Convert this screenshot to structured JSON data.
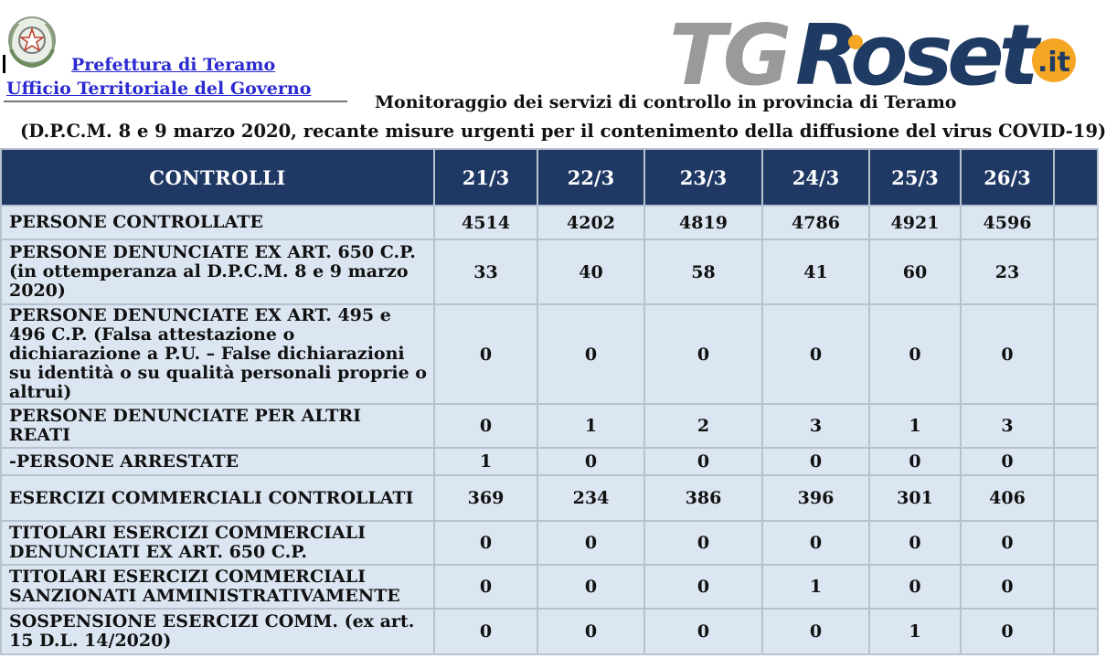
{
  "header": {
    "org_line1": "Prefettura di Teramo",
    "org_line2": "Ufficio Territoriale del Governo",
    "title": "Monitoraggio dei servizi di controllo in provincia di Teramo",
    "subtitle": "(D.P.C.M. 8 e 9 marzo 2020, recante misure urgenti per il contenimento della diffusione del virus COVID-19)"
  },
  "logo": {
    "part1": "TG",
    "part2": "Roset",
    "badge": ".it",
    "colors": {
      "gray": "#9a9a9a",
      "navy": "#1f3b63",
      "orange": "#f5a623"
    }
  },
  "emblem": {
    "icon": "italian-republic-emblem-icon"
  },
  "table": {
    "header_label": "CONTROLLI",
    "dates": [
      "21/3",
      "22/3",
      "23/3",
      "24/3",
      "25/3",
      "26/3",
      ""
    ],
    "rows": [
      {
        "label": "PERSONE CONTROLLATE",
        "values": [
          "4514",
          "4202",
          "4819",
          "4786",
          "4921",
          "4596",
          ""
        ]
      },
      {
        "label": "PERSONE DENUNCIATE EX ART. 650 C.P. (in ottemperanza al D.P.C.M. 8 e 9 marzo 2020)",
        "values": [
          "33",
          "40",
          "58",
          "41",
          "60",
          "23",
          ""
        ]
      },
      {
        "label": "PERSONE DENUNCIATE EX ART. 495 e 496 C.P. (Falsa attestazione o dichiarazione a P.U. – False dichiarazioni su identità o su qualità personali proprie o altrui)",
        "values": [
          "0",
          "0",
          "0",
          "0",
          "0",
          "0",
          ""
        ]
      },
      {
        "label": "PERSONE DENUNCIATE PER ALTRI REATI",
        "values": [
          "0",
          "1",
          "2",
          "3",
          "1",
          "3",
          ""
        ]
      },
      {
        "label": "-PERSONE ARRESTATE",
        "values": [
          "1",
          "0",
          "0",
          "0",
          "0",
          "0",
          ""
        ]
      },
      {
        "label": "ESERCIZI COMMERCIALI CONTROLLATI",
        "values": [
          "369",
          "234",
          "386",
          "396",
          "301",
          "406",
          ""
        ]
      },
      {
        "label": "TITOLARI ESERCIZI COMMERCIALI DENUNCIATI EX ART. 650 C.P.",
        "values": [
          "0",
          "0",
          "0",
          "0",
          "0",
          "0",
          ""
        ]
      },
      {
        "label": "TITOLARI ESERCIZI COMMERCIALI SANZIONATI AMMINISTRATIVAMENTE",
        "values": [
          "0",
          "0",
          "0",
          "1",
          "0",
          "0",
          ""
        ]
      },
      {
        "label": "SOSPENSIONE ESERCIZI COMM. (ex art. 15 D.L. 14/2020)",
        "values": [
          "0",
          "0",
          "0",
          "0",
          "1",
          "0",
          ""
        ]
      }
    ]
  },
  "footnote": ""
}
